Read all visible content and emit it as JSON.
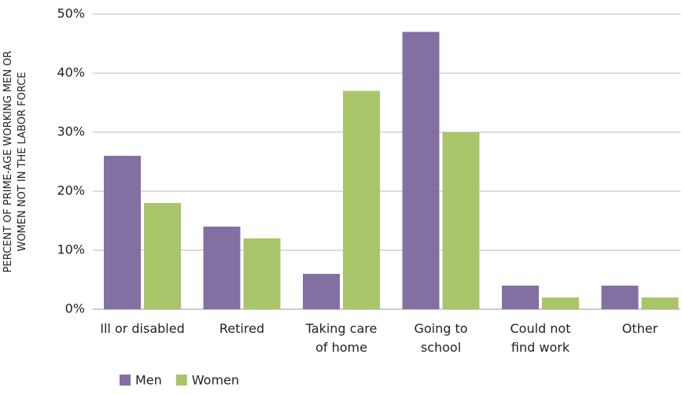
{
  "chart_data": {
    "type": "bar",
    "y_label": [
      "PERCENT OF PRIME-AGE WORKING MEN OR",
      "WOMEN NOT IN THE LABOR FORCE"
    ],
    "categories": [
      [
        "Ill or disabled"
      ],
      [
        "Retired"
      ],
      [
        "Taking care",
        "of home"
      ],
      [
        "Going to",
        "school"
      ],
      [
        "Could not",
        "find work"
      ],
      [
        "Other"
      ]
    ],
    "series": [
      {
        "name": "Men",
        "color": "#8370a3",
        "values": [
          26,
          14,
          6,
          47,
          4,
          4
        ]
      },
      {
        "name": "Women",
        "color": "#a9c56a",
        "values": [
          18,
          12,
          37,
          30,
          2,
          2
        ]
      }
    ],
    "ylim": [
      0,
      50
    ],
    "yticks": [
      {
        "value": 0,
        "label": "0%"
      },
      {
        "value": 10,
        "label": "10%"
      },
      {
        "value": 20,
        "label": "20%"
      },
      {
        "value": 30,
        "label": "30%"
      },
      {
        "value": 40,
        "label": "40%"
      },
      {
        "value": 50,
        "label": "50%"
      }
    ],
    "grid": true,
    "legend": "bottom-left"
  }
}
